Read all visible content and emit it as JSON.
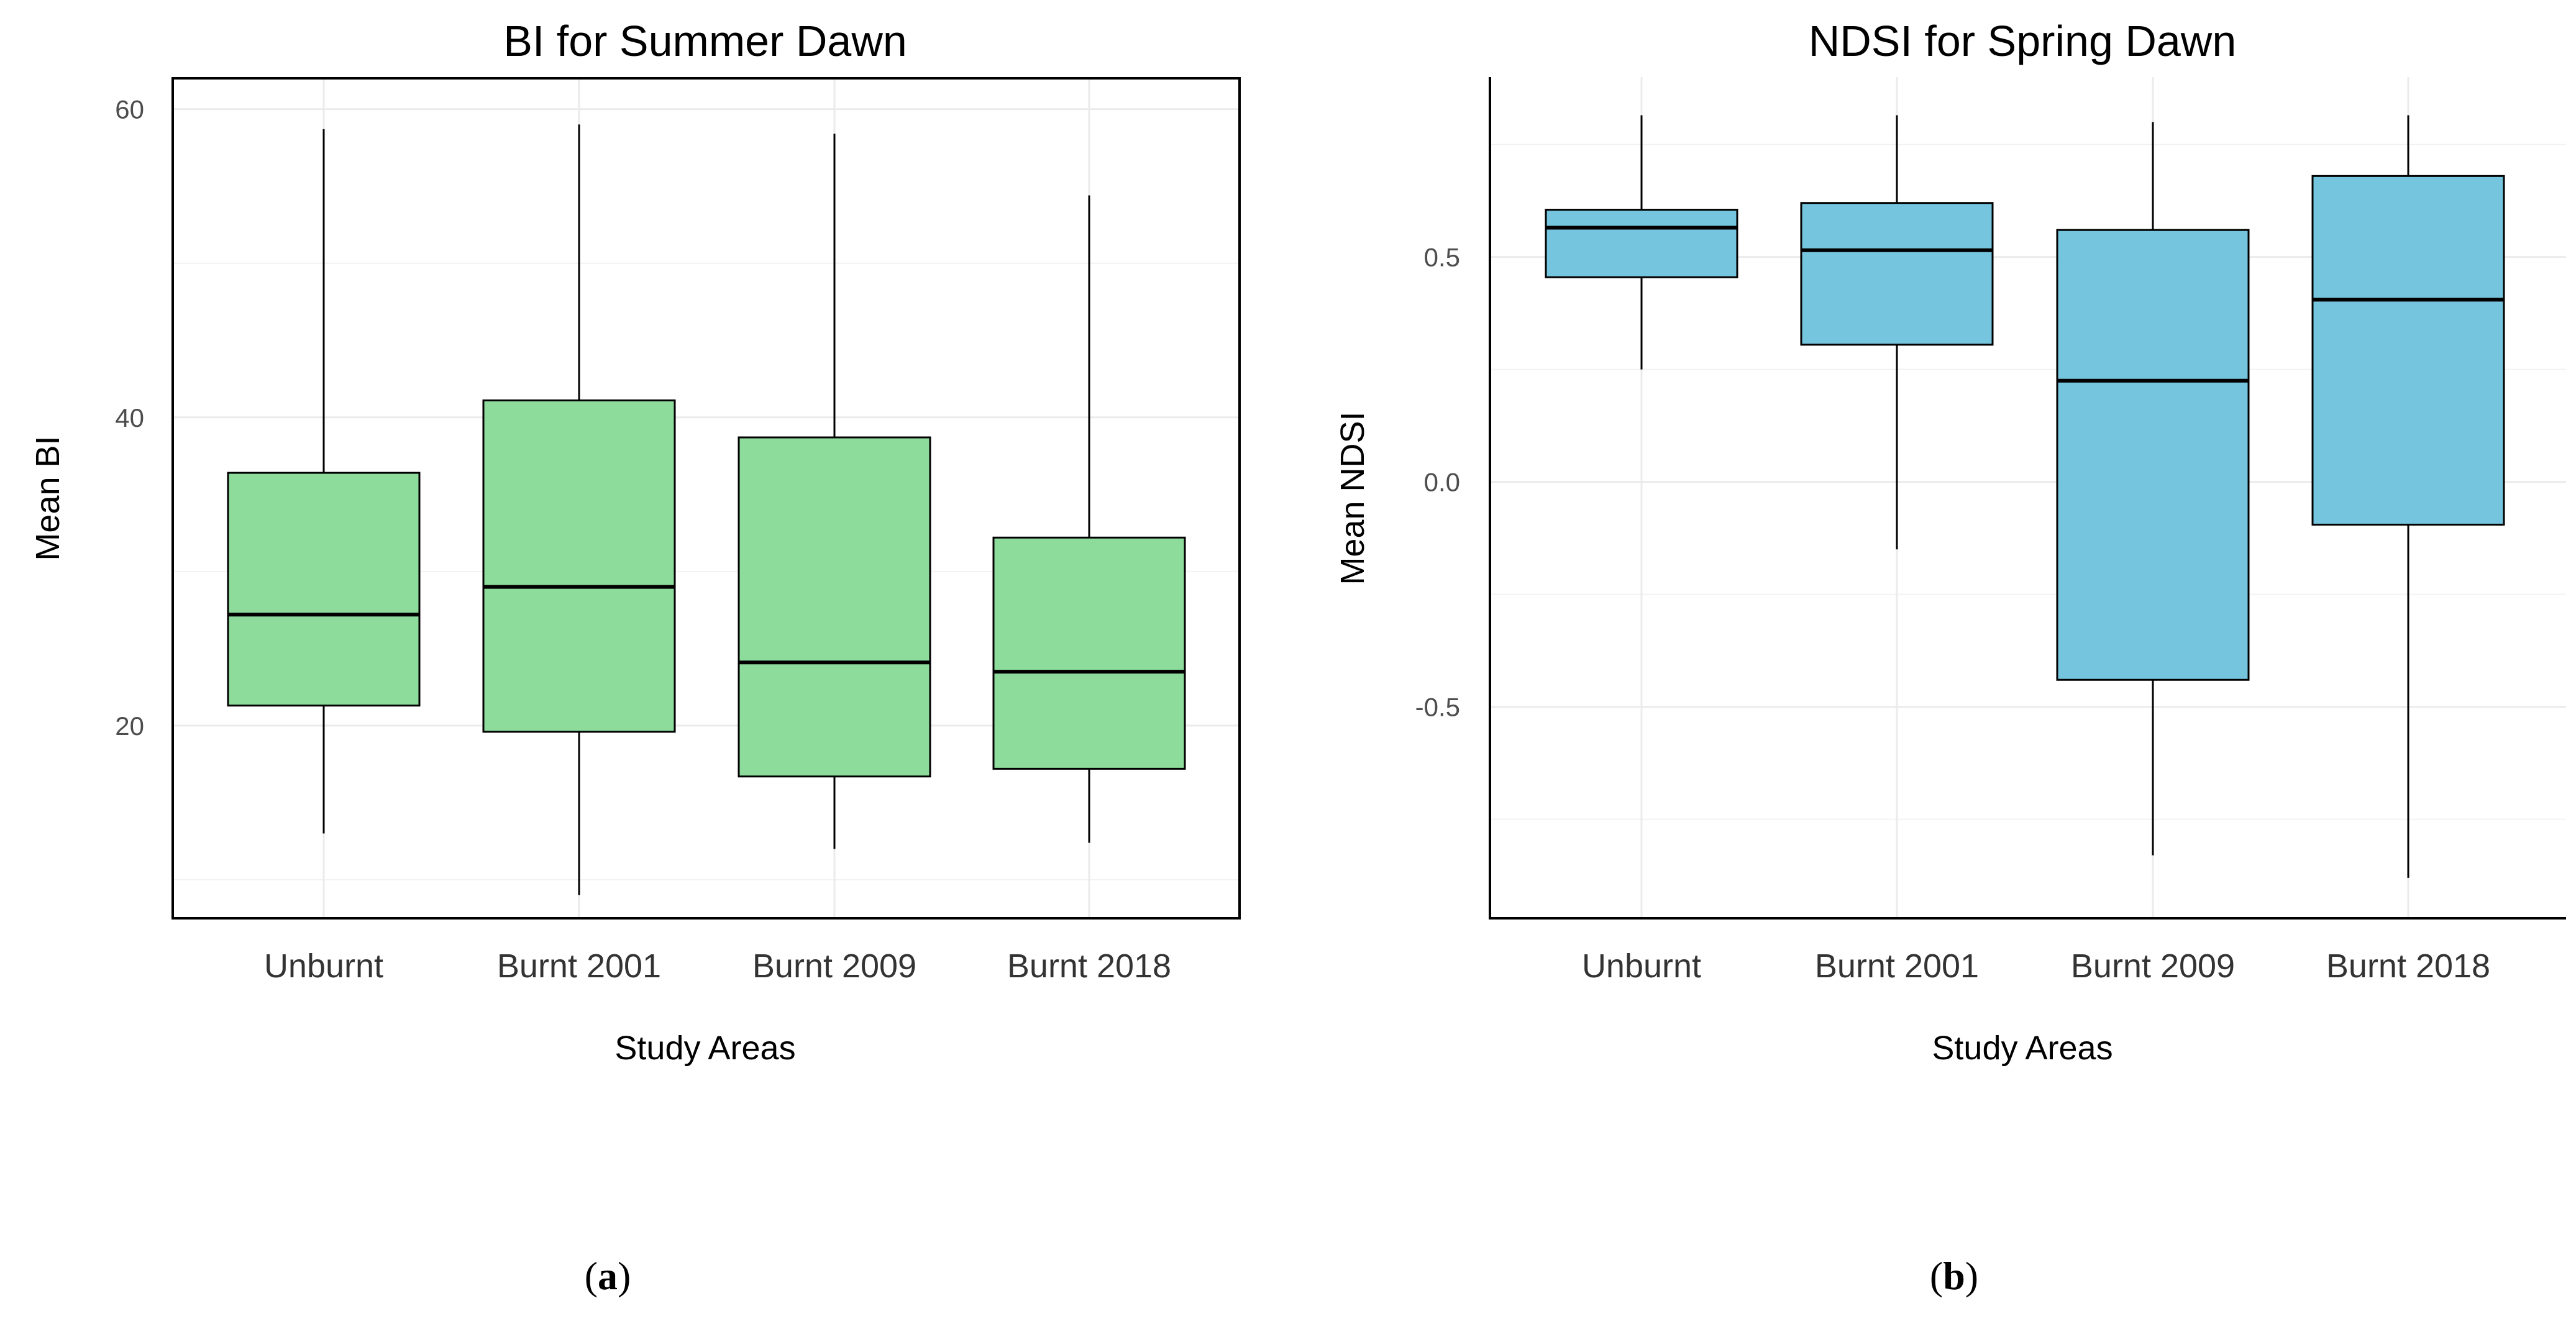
{
  "chart_data": [
    {
      "type": "boxplot",
      "title": "BI for Summer Dawn",
      "xlabel": "Study Areas",
      "ylabel": "Mean BI",
      "ylim": [
        7.5,
        62
      ],
      "yticks": [
        20,
        40,
        60
      ],
      "yticklabels": [
        "20",
        "40",
        "60"
      ],
      "categories": [
        "Unburnt",
        "Burnt 2001",
        "Burnt 2009",
        "Burnt 2018"
      ],
      "boxes": [
        {
          "min": 13.0,
          "q1": 21.3,
          "median": 27.2,
          "q3": 36.4,
          "max": 58.7
        },
        {
          "min": 9.0,
          "q1": 19.6,
          "median": 29.0,
          "q3": 41.1,
          "max": 59.0
        },
        {
          "min": 12.0,
          "q1": 16.7,
          "median": 24.1,
          "q3": 38.7,
          "max": 58.4
        },
        {
          "min": 12.4,
          "q1": 17.2,
          "median": 23.5,
          "q3": 32.2,
          "max": 54.4
        }
      ],
      "fill_color": "#8ddc9b",
      "panel_label": "a"
    },
    {
      "type": "boxplot",
      "title": "NDSI for Spring Dawn",
      "xlabel": "Study Areas",
      "ylabel": "Mean NDSI",
      "ylim": [
        -0.97,
        0.9
      ],
      "yticks": [
        -0.5,
        0.0,
        0.5
      ],
      "yticklabels": [
        "-0.5",
        "0.0",
        "0.5"
      ],
      "categories": [
        "Unburnt",
        "Burnt 2001",
        "Burnt 2009",
        "Burnt 2018"
      ],
      "boxes": [
        {
          "min": 0.25,
          "q1": 0.455,
          "median": 0.565,
          "q3": 0.605,
          "max": 0.815
        },
        {
          "min": -0.15,
          "q1": 0.305,
          "median": 0.515,
          "q3": 0.62,
          "max": 0.815
        },
        {
          "min": -0.83,
          "q1": -0.44,
          "median": 0.225,
          "q3": 0.56,
          "max": 0.8
        },
        {
          "min": -0.88,
          "q1": -0.095,
          "median": 0.405,
          "q3": 0.68,
          "max": 0.815
        }
      ],
      "fill_color": "#76c5df",
      "panel_label": "b"
    }
  ]
}
